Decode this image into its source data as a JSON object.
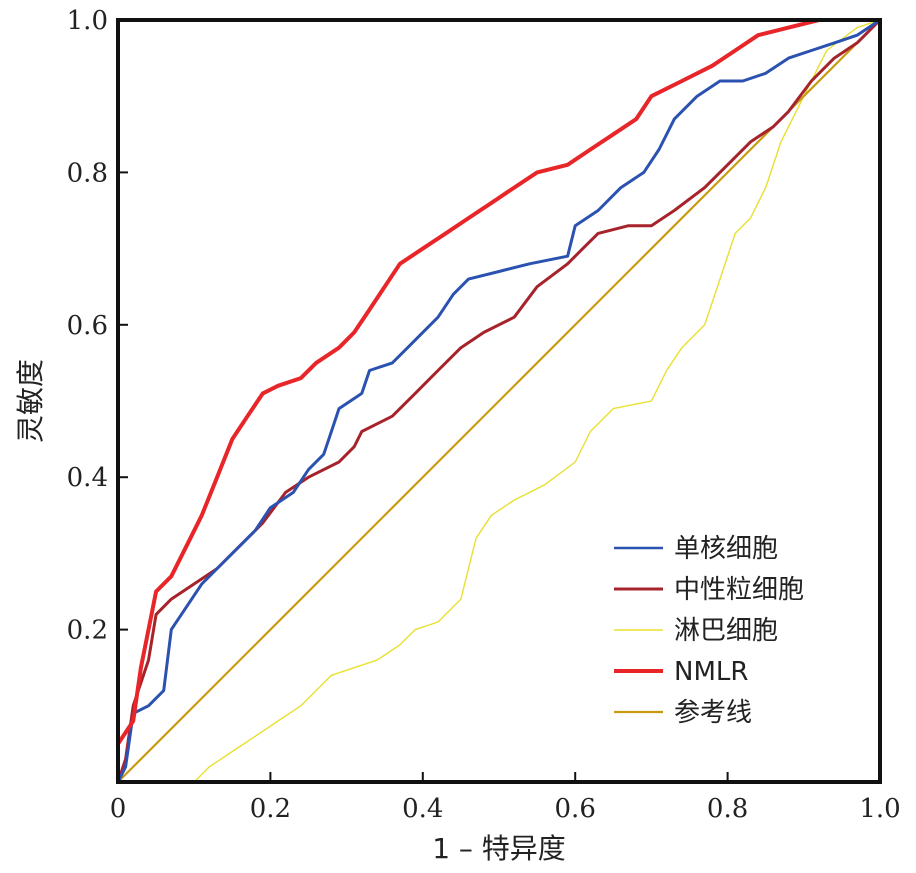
{
  "chart_data": {
    "type": "line",
    "title": "",
    "xlabel": "1 – 特异度",
    "ylabel": "灵敏度",
    "xlim": [
      0,
      1
    ],
    "ylim": [
      0,
      1
    ],
    "x_ticks": [
      {
        "value": 0,
        "label": "0"
      },
      {
        "value": 0.2,
        "label": "0.2"
      },
      {
        "value": 0.4,
        "label": "0.4"
      },
      {
        "value": 0.6,
        "label": "0.6"
      },
      {
        "value": 0.8,
        "label": "0.8"
      },
      {
        "value": 1,
        "label": "1.0"
      }
    ],
    "y_ticks": [
      {
        "value": 0.2,
        "label": "0.2"
      },
      {
        "value": 0.4,
        "label": "0.4"
      },
      {
        "value": 0.6,
        "label": "0.6"
      },
      {
        "value": 0.8,
        "label": "0.8"
      },
      {
        "value": 1,
        "label": "1.0"
      }
    ],
    "grid": false,
    "legend_position": "bottom-right",
    "series": [
      {
        "name": "单核细胞",
        "color": "#2b52b0",
        "points": [
          [
            0,
            0
          ],
          [
            0.01,
            0.02
          ],
          [
            0.02,
            0.09
          ],
          [
            0.04,
            0.1
          ],
          [
            0.06,
            0.12
          ],
          [
            0.07,
            0.2
          ],
          [
            0.09,
            0.23
          ],
          [
            0.11,
            0.26
          ],
          [
            0.14,
            0.29
          ],
          [
            0.16,
            0.31
          ],
          [
            0.18,
            0.33
          ],
          [
            0.2,
            0.36
          ],
          [
            0.23,
            0.38
          ],
          [
            0.25,
            0.41
          ],
          [
            0.27,
            0.43
          ],
          [
            0.28,
            0.46
          ],
          [
            0.29,
            0.49
          ],
          [
            0.32,
            0.51
          ],
          [
            0.33,
            0.54
          ],
          [
            0.36,
            0.55
          ],
          [
            0.38,
            0.57
          ],
          [
            0.4,
            0.59
          ],
          [
            0.42,
            0.61
          ],
          [
            0.44,
            0.64
          ],
          [
            0.46,
            0.66
          ],
          [
            0.5,
            0.67
          ],
          [
            0.54,
            0.68
          ],
          [
            0.59,
            0.69
          ],
          [
            0.6,
            0.73
          ],
          [
            0.63,
            0.75
          ],
          [
            0.66,
            0.78
          ],
          [
            0.69,
            0.8
          ],
          [
            0.71,
            0.83
          ],
          [
            0.73,
            0.87
          ],
          [
            0.76,
            0.9
          ],
          [
            0.79,
            0.92
          ],
          [
            0.82,
            0.92
          ],
          [
            0.85,
            0.93
          ],
          [
            0.88,
            0.95
          ],
          [
            0.91,
            0.96
          ],
          [
            0.94,
            0.97
          ],
          [
            0.97,
            0.98
          ],
          [
            1,
            1
          ]
        ]
      },
      {
        "name": "中性粒细胞",
        "color": "#a6232b",
        "points": [
          [
            0,
            0
          ],
          [
            0.01,
            0.03
          ],
          [
            0.02,
            0.1
          ],
          [
            0.04,
            0.16
          ],
          [
            0.05,
            0.22
          ],
          [
            0.07,
            0.24
          ],
          [
            0.1,
            0.26
          ],
          [
            0.13,
            0.28
          ],
          [
            0.16,
            0.31
          ],
          [
            0.19,
            0.34
          ],
          [
            0.22,
            0.38
          ],
          [
            0.25,
            0.4
          ],
          [
            0.29,
            0.42
          ],
          [
            0.31,
            0.44
          ],
          [
            0.32,
            0.46
          ],
          [
            0.36,
            0.48
          ],
          [
            0.39,
            0.51
          ],
          [
            0.42,
            0.54
          ],
          [
            0.45,
            0.57
          ],
          [
            0.48,
            0.59
          ],
          [
            0.52,
            0.61
          ],
          [
            0.55,
            0.65
          ],
          [
            0.59,
            0.68
          ],
          [
            0.61,
            0.7
          ],
          [
            0.63,
            0.72
          ],
          [
            0.67,
            0.73
          ],
          [
            0.7,
            0.73
          ],
          [
            0.73,
            0.75
          ],
          [
            0.77,
            0.78
          ],
          [
            0.8,
            0.81
          ],
          [
            0.83,
            0.84
          ],
          [
            0.86,
            0.86
          ],
          [
            0.88,
            0.88
          ],
          [
            0.91,
            0.92
          ],
          [
            0.94,
            0.95
          ],
          [
            0.97,
            0.97
          ],
          [
            1,
            1
          ]
        ]
      },
      {
        "name": "淋巴细胞",
        "color": "#e8e030",
        "points": [
          [
            0,
            0
          ],
          [
            0.1,
            0.0
          ],
          [
            0.12,
            0.02
          ],
          [
            0.15,
            0.04
          ],
          [
            0.18,
            0.06
          ],
          [
            0.21,
            0.08
          ],
          [
            0.24,
            0.1
          ],
          [
            0.26,
            0.12
          ],
          [
            0.28,
            0.14
          ],
          [
            0.31,
            0.15
          ],
          [
            0.34,
            0.16
          ],
          [
            0.37,
            0.18
          ],
          [
            0.39,
            0.2
          ],
          [
            0.42,
            0.21
          ],
          [
            0.45,
            0.24
          ],
          [
            0.46,
            0.28
          ],
          [
            0.47,
            0.32
          ],
          [
            0.49,
            0.35
          ],
          [
            0.52,
            0.37
          ],
          [
            0.56,
            0.39
          ],
          [
            0.6,
            0.42
          ],
          [
            0.62,
            0.46
          ],
          [
            0.65,
            0.49
          ],
          [
            0.7,
            0.5
          ],
          [
            0.72,
            0.54
          ],
          [
            0.74,
            0.57
          ],
          [
            0.77,
            0.6
          ],
          [
            0.79,
            0.66
          ],
          [
            0.81,
            0.72
          ],
          [
            0.83,
            0.74
          ],
          [
            0.85,
            0.78
          ],
          [
            0.87,
            0.84
          ],
          [
            0.89,
            0.88
          ],
          [
            0.91,
            0.92
          ],
          [
            0.93,
            0.96
          ],
          [
            0.97,
            0.99
          ],
          [
            1,
            1
          ]
        ]
      },
      {
        "name": "NMLR",
        "color": "#e8262a",
        "points": [
          [
            0,
            0
          ],
          [
            0.0,
            0.05
          ],
          [
            0.02,
            0.08
          ],
          [
            0.03,
            0.15
          ],
          [
            0.04,
            0.2
          ],
          [
            0.05,
            0.25
          ],
          [
            0.07,
            0.27
          ],
          [
            0.09,
            0.31
          ],
          [
            0.11,
            0.35
          ],
          [
            0.13,
            0.4
          ],
          [
            0.15,
            0.45
          ],
          [
            0.17,
            0.48
          ],
          [
            0.19,
            0.51
          ],
          [
            0.21,
            0.52
          ],
          [
            0.24,
            0.53
          ],
          [
            0.26,
            0.55
          ],
          [
            0.29,
            0.57
          ],
          [
            0.31,
            0.59
          ],
          [
            0.33,
            0.62
          ],
          [
            0.35,
            0.65
          ],
          [
            0.37,
            0.68
          ],
          [
            0.4,
            0.7
          ],
          [
            0.43,
            0.72
          ],
          [
            0.46,
            0.74
          ],
          [
            0.49,
            0.76
          ],
          [
            0.52,
            0.78
          ],
          [
            0.55,
            0.8
          ],
          [
            0.59,
            0.81
          ],
          [
            0.62,
            0.83
          ],
          [
            0.65,
            0.85
          ],
          [
            0.68,
            0.87
          ],
          [
            0.7,
            0.9
          ],
          [
            0.74,
            0.92
          ],
          [
            0.78,
            0.94
          ],
          [
            0.81,
            0.96
          ],
          [
            0.84,
            0.98
          ],
          [
            0.88,
            0.99
          ],
          [
            0.92,
            1.0
          ],
          [
            1,
            1
          ]
        ]
      },
      {
        "name": "参考线",
        "color": "#c89b10",
        "points": [
          [
            0,
            0
          ],
          [
            1,
            1
          ]
        ]
      }
    ]
  }
}
